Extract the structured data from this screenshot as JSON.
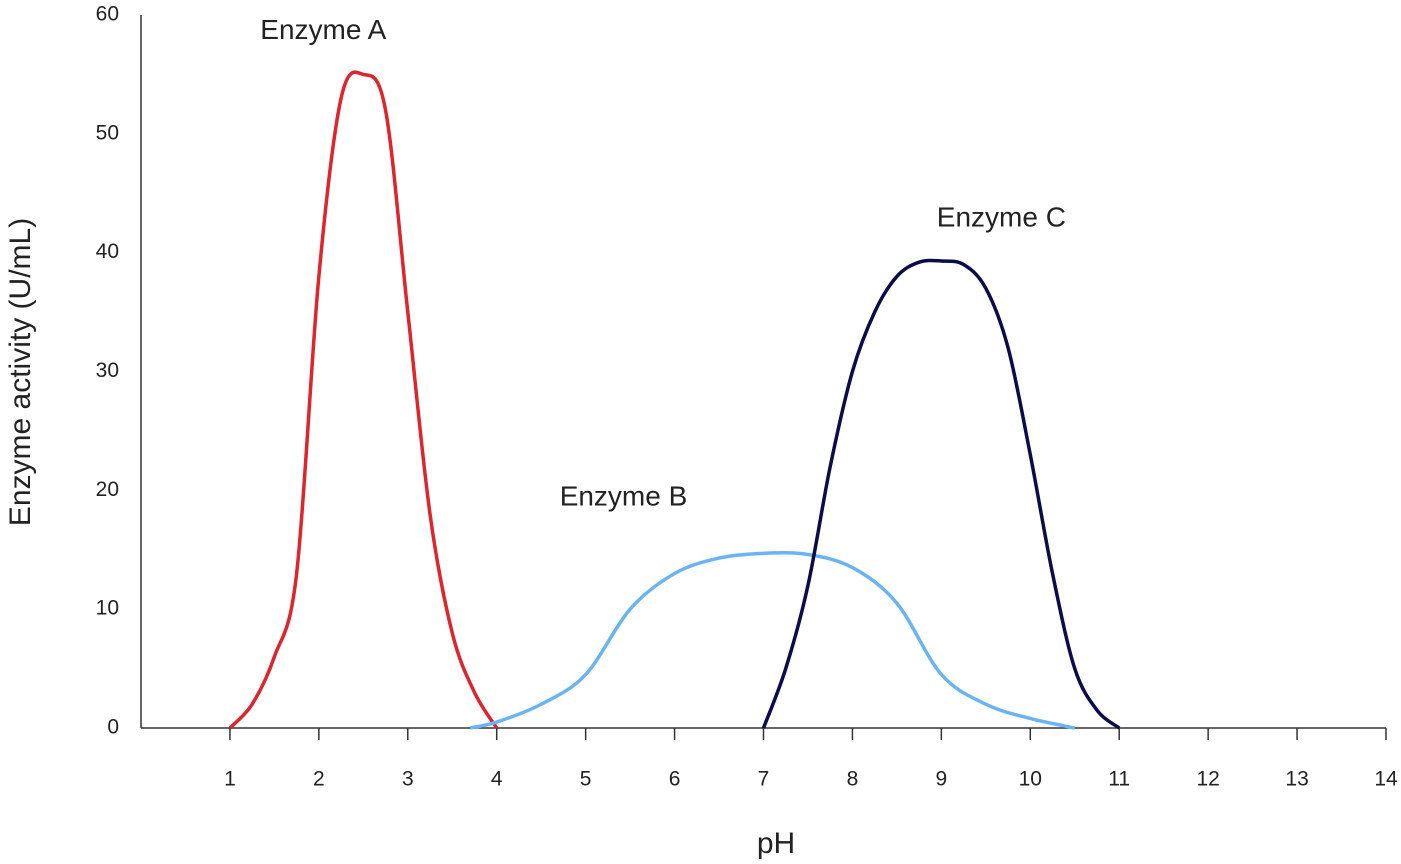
{
  "chart_data": {
    "type": "line",
    "xlabel": "pH",
    "ylabel": "Enzyme activity (U/mL)",
    "xlim": [
      0,
      14
    ],
    "ylim": [
      0,
      60
    ],
    "xticks": [
      1,
      2,
      3,
      4,
      5,
      6,
      7,
      8,
      9,
      10,
      11,
      12,
      13,
      14
    ],
    "yticks": [
      0,
      10,
      20,
      30,
      40,
      50,
      60
    ],
    "grid": false,
    "series": [
      {
        "name": "Enzyme A",
        "color": "#e0242c",
        "x": [
          1,
          1.25,
          1.5,
          1.75,
          2,
          2.25,
          2.5,
          2.75,
          3,
          3.25,
          3.5,
          3.75,
          4
        ],
        "values": [
          0,
          2,
          6,
          13,
          38,
          53,
          55,
          52,
          35,
          18,
          8,
          3,
          0
        ]
      },
      {
        "name": "Enzyme B",
        "color": "#6ab4f5",
        "x": [
          3.7,
          4,
          4.5,
          5,
          5.5,
          6,
          6.5,
          7,
          7.5,
          8,
          8.5,
          9,
          9.5,
          10,
          10.5
        ],
        "values": [
          0,
          0.5,
          2,
          4.5,
          10,
          13,
          14.3,
          14.7,
          14.6,
          13.5,
          10.5,
          4.5,
          2,
          0.8,
          0
        ]
      },
      {
        "name": "Enzyme C",
        "color": "#0a0c4c",
        "x": [
          7,
          7.25,
          7.5,
          7.75,
          8,
          8.25,
          8.5,
          8.75,
          9,
          9.25,
          9.5,
          9.75,
          10,
          10.25,
          10.5,
          10.75,
          11
        ],
        "values": [
          0,
          5,
          12,
          22,
          30,
          35,
          38,
          39.2,
          39.3,
          39,
          37,
          32,
          23,
          13,
          5,
          1.5,
          0
        ]
      }
    ]
  }
}
